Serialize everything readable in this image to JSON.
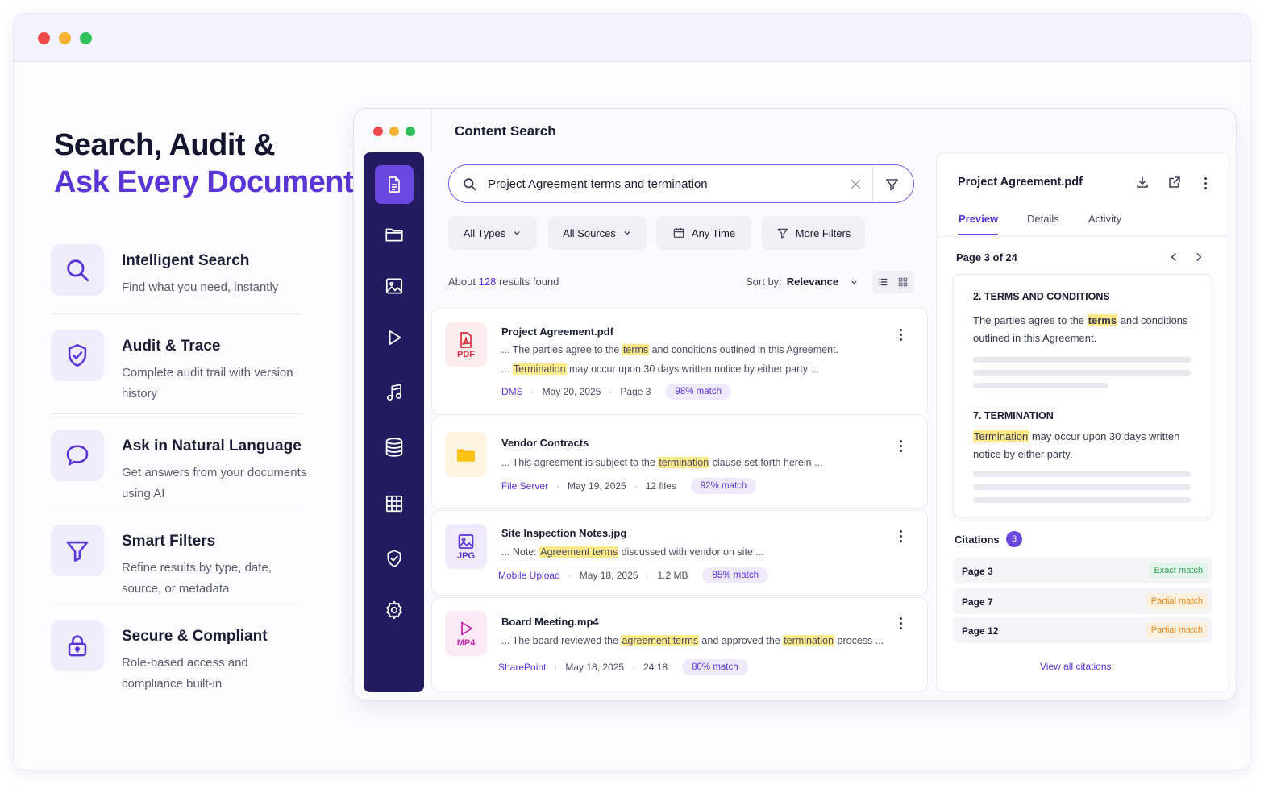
{
  "hero": {
    "line1": "Search, Audit &",
    "line2": "Ask Every Document"
  },
  "features": [
    {
      "icon": "search-icon",
      "title": "Intelligent Search",
      "desc": "Find what you need, instantly"
    },
    {
      "icon": "shield-check-icon",
      "title": "Audit & Trace",
      "desc": "Complete audit trail with version history"
    },
    {
      "icon": "chat-bubble-icon",
      "title": "Ask in Natural Language",
      "desc": "Get answers from your documents using AI"
    },
    {
      "icon": "filter-icon",
      "title": "Smart Filters",
      "desc": "Refine results by type, date, source, or metadata"
    },
    {
      "icon": "lock-icon",
      "title": "Secure & Compliant",
      "desc": "Role-based access and compliance built-in"
    }
  ],
  "app": {
    "title": "Content Search",
    "sidebar": [
      "document-icon",
      "folder-icon",
      "image-icon",
      "play-icon",
      "music-icon",
      "database-icon",
      "grid-icon",
      "shield-icon",
      "gear-icon"
    ],
    "search": {
      "query": "Project Agreement terms and termination"
    },
    "filters": {
      "types": "All Types",
      "sources": "All Sources",
      "time": "Any Time",
      "more": "More Filters"
    },
    "results": {
      "prefix": "About",
      "count": "128",
      "suffix": "results found"
    },
    "sort": {
      "label": "Sort by:",
      "value": "Relevance"
    }
  },
  "cards": [
    {
      "title": "Project Agreement.pdf",
      "type": "PDF",
      "l1a": "... The parties agree to the ",
      "l1h": "terms",
      "l1b": " and conditions outlined in this Agreement.",
      "l2a": "... ",
      "l2h": "Termination",
      "l2b": " may occur upon 30 days written notice by either party ...",
      "source": "DMS",
      "date": "May 20, 2025",
      "extra": "Page 3",
      "match": "98% match"
    },
    {
      "title": "Vendor Contracts",
      "type": "",
      "l1a": "... This agreement is subject to the ",
      "l1h": "termination",
      "l1b": " clause set forth herein ...",
      "source": "File Server",
      "date": "May 19, 2025",
      "extra": "12 files",
      "match": "92% match"
    },
    {
      "title": "Site Inspection Notes.jpg",
      "type": "JPG",
      "l1a": "... Note: ",
      "l1h": "Agreement terms",
      "l1b": " discussed with vendor on site ...",
      "source": "Mobile Upload",
      "date": "May 18, 2025",
      "extra": "1.2 MB",
      "match": "85% match"
    },
    {
      "title": "Board Meeting.mp4",
      "type": "MP4",
      "l1a": "... The board reviewed the ",
      "l1h": "agreement terms",
      "l1b": " and approved the ",
      "l1h2": "termination",
      "l1c": " process ...",
      "source": "SharePoint",
      "date": "May 18, 2025",
      "extra": "24:18",
      "match": "80% match"
    }
  ],
  "preview": {
    "title": "Project Agreement.pdf",
    "tabs": [
      "Preview",
      "Details",
      "Activity"
    ],
    "page": "Page 3 of 24",
    "s1": {
      "heading": "2.  TERMS AND CONDITIONS",
      "a": "The parties agree to the ",
      "h": "terms",
      "b": " and conditions outlined in this Agreement."
    },
    "s2": {
      "heading": "7.  TERMINATION",
      "h": "Termination",
      "b": " may occur upon 30 days written notice by either party."
    },
    "citations_label": "Citations",
    "citations_count": "3",
    "citations": [
      {
        "page": "Page 3",
        "status": "Exact match"
      },
      {
        "page": "Page 7",
        "status": "Partial match"
      },
      {
        "page": "Page 12",
        "status": "Partial match"
      }
    ],
    "view_all": "View all citations"
  },
  "colors": {
    "accent": "#5b34d6",
    "sidebar": "#241a5f",
    "highlight": "#fbe98a",
    "exact": "#2f9a57",
    "partial": "#e08a1e"
  }
}
